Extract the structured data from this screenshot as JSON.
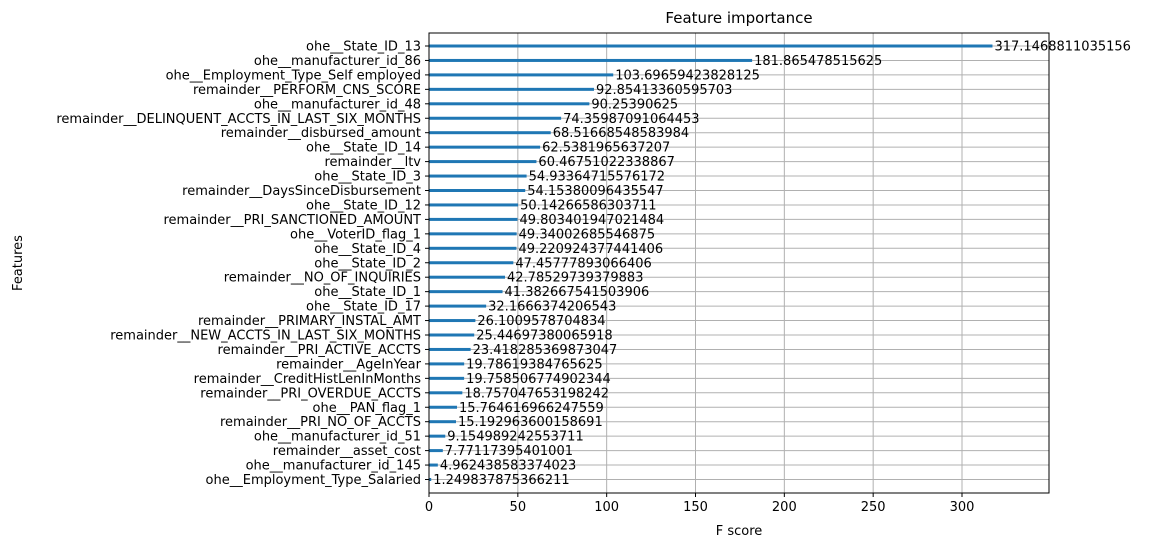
{
  "chart_data": {
    "type": "bar",
    "orientation": "horizontal",
    "title": "Feature importance",
    "xlabel": "F score",
    "ylabel": "Features",
    "xlim": [
      0,
      350
    ],
    "xticks": [
      0,
      50,
      100,
      150,
      200,
      250,
      300
    ],
    "grid": true,
    "bar_color": "#1f77b4",
    "categories": [
      "ohe__State_ID_13",
      "ohe__manufacturer_id_86",
      "ohe__Employment_Type_Self employed",
      "remainder__PERFORM_CNS_SCORE",
      "ohe__manufacturer_id_48",
      "remainder__DELINQUENT_ACCTS_IN_LAST_SIX_MONTHS",
      "remainder__disbursed_amount",
      "ohe__State_ID_14",
      "remainder__ltv",
      "ohe__State_ID_3",
      "remainder__DaysSinceDisbursement",
      "ohe__State_ID_12",
      "remainder__PRI_SANCTIONED_AMOUNT",
      "ohe__VoterID_flag_1",
      "ohe__State_ID_4",
      "ohe__State_ID_2",
      "remainder__NO_OF_INQUIRIES",
      "ohe__State_ID_1",
      "ohe__State_ID_17",
      "remainder__PRIMARY_INSTAL_AMT",
      "remainder__NEW_ACCTS_IN_LAST_SIX_MONTHS",
      "remainder__PRI_ACTIVE_ACCTS",
      "remainder__AgeInYear",
      "remainder__CreditHistLenInMonths",
      "remainder__PRI_OVERDUE_ACCTS",
      "ohe__PAN_flag_1",
      "remainder__PRI_NO_OF_ACCTS",
      "ohe__manufacturer_id_51",
      "remainder__asset_cost",
      "ohe__manufacturer_id_145",
      "ohe__Employment_Type_Salaried"
    ],
    "values": [
      317.1468811035156,
      181.865478515625,
      103.69659423828125,
      92.85413360595703,
      90.25390625,
      74.35987091064453,
      68.51668548583984,
      62.5381965637207,
      60.46751022338867,
      54.93364715576172,
      54.15380096435547,
      50.14266586303711,
      49.803401947021484,
      49.34002685546875,
      49.220924377441406,
      47.45777893066406,
      42.78529739379883,
      41.382667541503906,
      32.1666374206543,
      26.1009578704834,
      25.44697380065918,
      23.418285369873047,
      19.78619384765625,
      19.758506774902344,
      18.757047653198242,
      15.764616966247559,
      15.192963600158691,
      9.154989242553711,
      7.77117395401001,
      4.962438583374023,
      1.249837875366211
    ],
    "value_labels": [
      "317.1468811035156",
      "181.865478515625",
      "103.69659423828125",
      "92.85413360595703",
      "90.25390625",
      "74.35987091064453",
      "68.51668548583984",
      "62.5381965637207",
      "60.46751022338867",
      "54.93364715576172",
      "54.15380096435547",
      "50.14266586303711",
      "49.803401947021484",
      "49.34002685546875",
      "49.220924377441406",
      "47.45777893066406",
      "42.78529739379883",
      "41.382667541503906",
      "32.1666374206543",
      "26.1009578704834",
      "25.44697380065918",
      "23.418285369873047",
      "19.78619384765625",
      "19.758506774902344",
      "18.757047653198242",
      "15.764616966247559",
      "15.192963600158691",
      "9.154989242553711",
      "7.77117395401001",
      "4.962438583374023",
      "1.249837875366211"
    ]
  }
}
